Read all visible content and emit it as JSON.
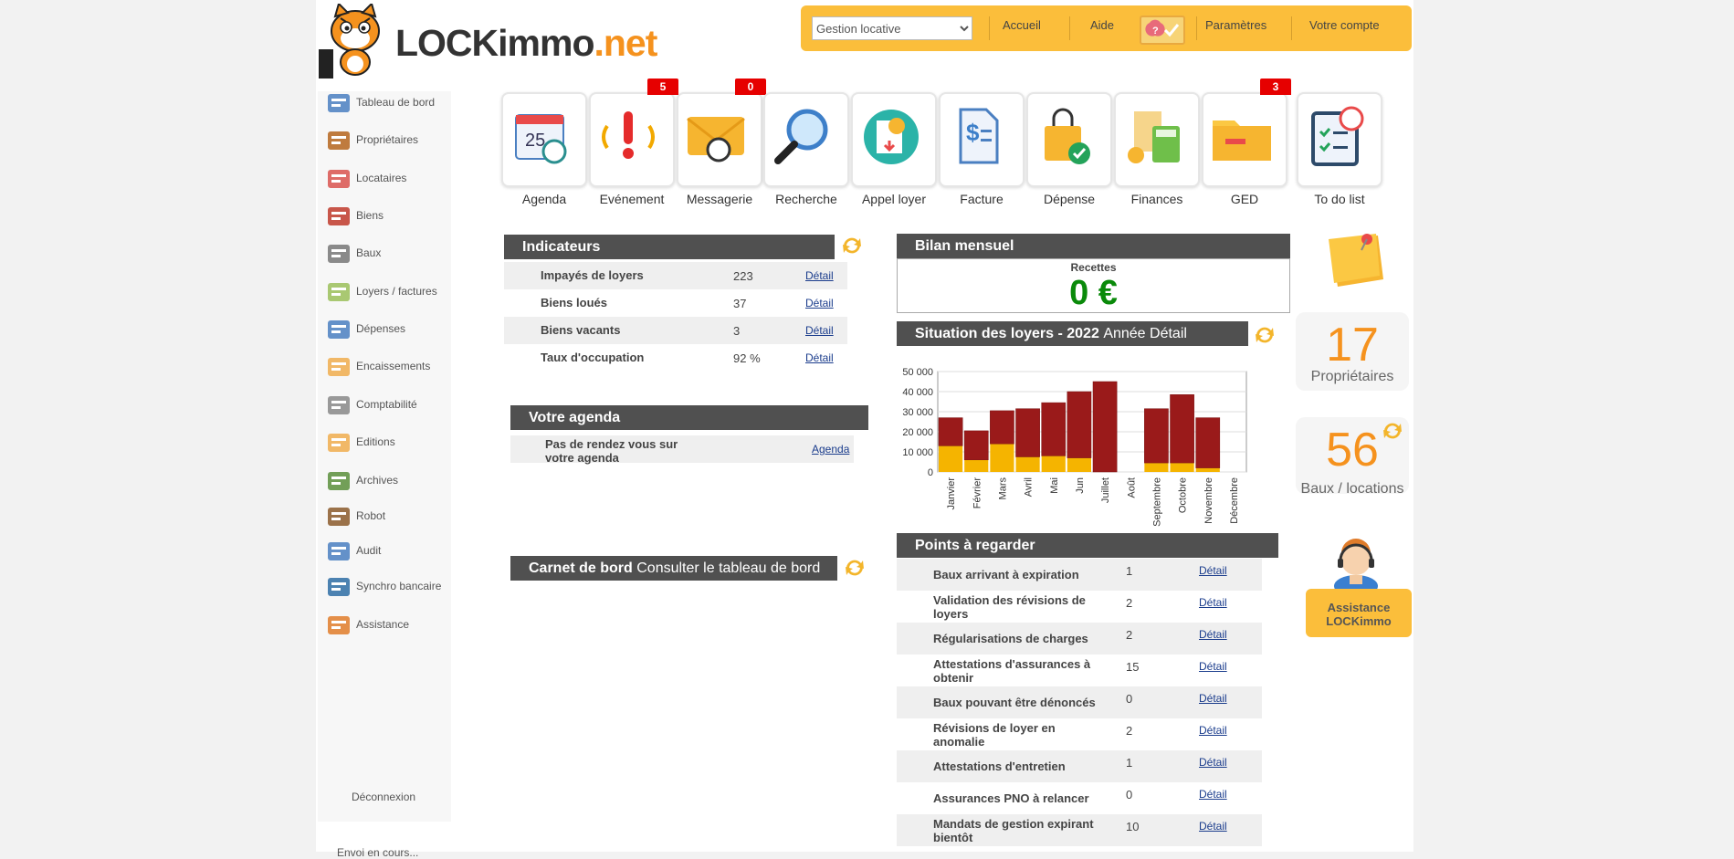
{
  "brand": {
    "main": "LOCKimmo",
    "suffix": ".net"
  },
  "topbar": {
    "select_value": "Gestion locative",
    "accueil": "Accueil",
    "aide": "Aide",
    "parametres": "Paramètres",
    "compte": "Votre compte"
  },
  "sidebar": {
    "items": [
      {
        "label": "Tableau de bord",
        "icon": "dashboard-icon"
      },
      {
        "label": "Propriétaires",
        "icon": "owners-icon"
      },
      {
        "label": "Locataires",
        "icon": "tenants-icon"
      },
      {
        "label": "Biens",
        "icon": "house-icon"
      },
      {
        "label": "Baux",
        "icon": "lease-icon"
      },
      {
        "label": "Loyers / factures",
        "icon": "invoice-icon"
      },
      {
        "label": "Dépenses",
        "icon": "expenses-icon"
      },
      {
        "label": "Encaissements",
        "icon": "cash-icon"
      },
      {
        "label": "Comptabilité",
        "icon": "calculator-icon"
      },
      {
        "label": "Editions",
        "icon": "chart-icon"
      },
      {
        "label": "Archives",
        "icon": "archives-icon"
      },
      {
        "label": "Robot",
        "icon": "robot-icon"
      },
      {
        "label": "Audit",
        "icon": "checklist-icon"
      },
      {
        "label": "Synchro bancaire",
        "icon": "bank-icon"
      },
      {
        "label": "Assistance",
        "icon": "support-icon"
      }
    ],
    "logout": "Déconnexion",
    "more": "Envoi en cours..."
  },
  "tiles": [
    {
      "label": "Agenda",
      "badge": ""
    },
    {
      "label": "Evénement",
      "badge": "5"
    },
    {
      "label": "Messagerie",
      "badge": "0"
    },
    {
      "label": "Recherche",
      "badge": ""
    },
    {
      "label": "Appel loyer",
      "badge": ""
    },
    {
      "label": "Facture",
      "badge": ""
    },
    {
      "label": "Dépense",
      "badge": ""
    },
    {
      "label": "Finances",
      "badge": ""
    },
    {
      "label": "GED",
      "badge": "3"
    },
    {
      "label": "To do list",
      "badge": ""
    }
  ],
  "indicateurs": {
    "title": "Indicateurs",
    "rows": [
      {
        "label": "Impayés de loyers",
        "value": "223",
        "link": "Détail"
      },
      {
        "label": "Biens loués",
        "value": "37",
        "link": "Détail"
      },
      {
        "label": "Biens vacants",
        "value": "3",
        "link": "Détail"
      },
      {
        "label": "Taux d'occupation",
        "value": "92 %",
        "link": "Détail"
      }
    ]
  },
  "agenda": {
    "title": "Votre agenda",
    "text_line1": "Pas de rendez vous sur",
    "text_line2": "votre agenda",
    "link": "Agenda"
  },
  "carnet": {
    "title": "Carnet de bord",
    "link": "Consulter le tableau de bord"
  },
  "bilan": {
    "title": "Bilan mensuel",
    "recettes_label": "Recettes",
    "recettes_value": "0 €"
  },
  "situation": {
    "title": "Situation des loyers - 2022",
    "annee_link": "Année",
    "detail_link": "Détail"
  },
  "chart_data": {
    "type": "bar",
    "stacked": true,
    "categories": [
      "Janvier",
      "Février",
      "Mars",
      "Avril",
      "Mai",
      "Jun",
      "Juillet",
      "Août",
      "Septembre",
      "Octobre",
      "Novembre",
      "Décembre"
    ],
    "series": [
      {
        "name": "",
        "color": "#f5b400",
        "values": [
          13000,
          6000,
          14000,
          7500,
          8000,
          7000,
          0,
          0,
          4500,
          4500,
          2000,
          0
        ]
      },
      {
        "name": "",
        "color": "#9a1a1a",
        "values": [
          14000,
          14500,
          16500,
          24000,
          26500,
          33000,
          45000,
          0,
          27000,
          34000,
          25000,
          0
        ]
      }
    ],
    "ylim": [
      0,
      50000
    ],
    "yticks": [
      "0",
      "10 000",
      "20 000",
      "30 000",
      "40 000",
      "50 000"
    ],
    "grid": true
  },
  "points": {
    "title": "Points à regarder",
    "rows": [
      {
        "label": "Baux arrivant à expiration",
        "value": "1",
        "link": "Détail"
      },
      {
        "label": "Validation des révisions de loyers",
        "value": "2",
        "link": "Détail"
      },
      {
        "label": "Régularisations de charges",
        "value": "2",
        "link": "Détail"
      },
      {
        "label": "Attestations d'assurances à obtenir",
        "value": "15",
        "link": "Détail"
      },
      {
        "label": "Baux pouvant être dénoncés",
        "value": "0",
        "link": "Détail"
      },
      {
        "label": "Révisions de loyer en anomalie",
        "value": "2",
        "link": "Détail"
      },
      {
        "label": "Attestations d'entretien",
        "value": "1",
        "link": "Détail"
      },
      {
        "label": "Assurances PNO à relancer",
        "value": "0",
        "link": "Détail"
      },
      {
        "label": "Mandats de gestion expirant bientôt",
        "value": "10",
        "link": "Détail"
      }
    ]
  },
  "stats": {
    "proprietaires_value": "17",
    "proprietaires_label": "Propriétaires",
    "baux_value": "56",
    "baux_label": "Baux / locations"
  },
  "assistance": {
    "line1": "Assistance",
    "line2": "LOCKimmo"
  }
}
